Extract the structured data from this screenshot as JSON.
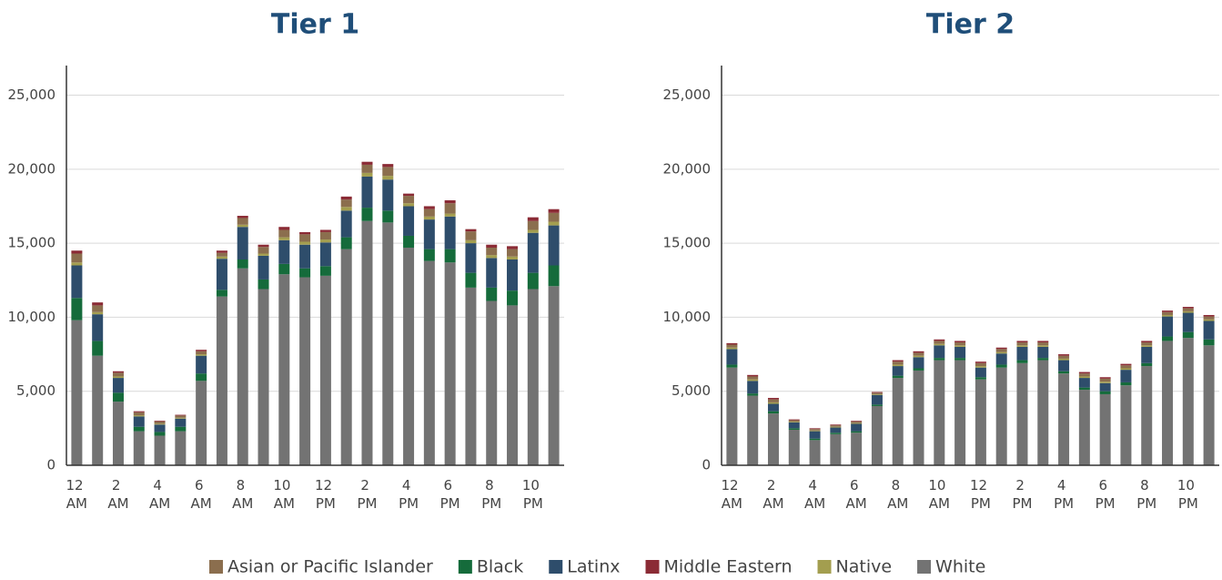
{
  "chart_data": [
    {
      "type": "bar",
      "stacked": true,
      "title": "Tier 1",
      "categories": [
        "12 AM",
        null,
        "2 AM",
        null,
        "4 AM",
        null,
        "6 AM",
        null,
        "8 AM",
        null,
        "10 AM",
        null,
        "12 PM",
        null,
        "2 PM",
        null,
        "4 PM",
        null,
        "6 PM",
        null,
        "8 PM",
        null,
        "10 PM",
        null
      ],
      "ylim": [
        0,
        27000
      ],
      "yticks": [
        0,
        {
          "value": 5000,
          "label": "5,000"
        },
        {
          "value": 10000,
          "label": "10,000"
        },
        {
          "value": 15000,
          "label": "15,000"
        },
        {
          "value": 20000,
          "label": "20,000"
        },
        {
          "value": 25000,
          "label": "25,000"
        }
      ],
      "grid": true,
      "series": [
        {
          "name": "White",
          "color": "#737373",
          "values": [
            9800,
            7400,
            4300,
            2300,
            2000,
            2300,
            5700,
            11400,
            13300,
            11900,
            12900,
            12700,
            12800,
            14600,
            16500,
            16400,
            14700,
            13800,
            13700,
            12000,
            11100,
            10800,
            11900,
            12100
          ]
        },
        {
          "name": "Black",
          "color": "#156b3b",
          "values": [
            1500,
            1000,
            600,
            300,
            250,
            300,
            500,
            450,
            600,
            650,
            700,
            600,
            650,
            800,
            900,
            800,
            800,
            800,
            900,
            1000,
            900,
            1000,
            1100,
            1400
          ]
        },
        {
          "name": "Latinx",
          "color": "#2e4d6b",
          "values": [
            2200,
            1800,
            1000,
            700,
            500,
            550,
            1200,
            2100,
            2200,
            1600,
            1600,
            1600,
            1600,
            1800,
            2100,
            2100,
            2000,
            2000,
            2200,
            2000,
            2000,
            2100,
            2700,
            2700
          ]
        },
        {
          "name": "Native",
          "color": "#a39e4f",
          "values": [
            200,
            150,
            100,
            80,
            60,
            60,
            100,
            150,
            150,
            150,
            200,
            200,
            200,
            250,
            250,
            250,
            200,
            200,
            200,
            200,
            200,
            200,
            200,
            250
          ]
        },
        {
          "name": "Asian or Pacific Islander",
          "color": "#8b6e4e",
          "values": [
            600,
            450,
            250,
            200,
            150,
            150,
            200,
            250,
            450,
            450,
            500,
            500,
            500,
            500,
            550,
            600,
            500,
            500,
            700,
            600,
            500,
            500,
            600,
            600
          ]
        },
        {
          "name": "Middle Eastern",
          "color": "#8b2b35",
          "values": [
            200,
            200,
            100,
            70,
            50,
            50,
            100,
            150,
            150,
            150,
            200,
            150,
            150,
            200,
            200,
            200,
            150,
            200,
            200,
            150,
            200,
            200,
            250,
            250
          ]
        }
      ]
    },
    {
      "type": "bar",
      "stacked": true,
      "title": "Tier 2",
      "categories": [
        "12 AM",
        null,
        "2 AM",
        null,
        "4 AM",
        null,
        "6 AM",
        null,
        "8 AM",
        null,
        "10 AM",
        null,
        "12 PM",
        null,
        "2 PM",
        null,
        "4 PM",
        null,
        "6 PM",
        null,
        "8 PM",
        null,
        "10 PM",
        null
      ],
      "ylim": [
        0,
        27000
      ],
      "yticks": [
        0,
        {
          "value": 5000,
          "label": "5,000"
        },
        {
          "value": 10000,
          "label": "10,000"
        },
        {
          "value": 15000,
          "label": "15,000"
        },
        {
          "value": 20000,
          "label": "20,000"
        },
        {
          "value": 25000,
          "label": "25,000"
        }
      ],
      "grid": true,
      "series": [
        {
          "name": "White",
          "color": "#737373",
          "values": [
            6600,
            4700,
            3500,
            2400,
            1700,
            2100,
            2200,
            4000,
            5900,
            6400,
            7100,
            7100,
            5800,
            6600,
            6900,
            7100,
            6200,
            5100,
            4800,
            5400,
            6700,
            8400,
            8600,
            8100
          ]
        },
        {
          "name": "Black",
          "color": "#156b3b",
          "values": [
            200,
            150,
            150,
            100,
            100,
            100,
            100,
            100,
            150,
            150,
            150,
            150,
            150,
            200,
            200,
            150,
            150,
            150,
            200,
            200,
            200,
            300,
            400,
            400
          ]
        },
        {
          "name": "Latinx",
          "color": "#2e4d6b",
          "values": [
            1050,
            850,
            500,
            400,
            500,
            350,
            500,
            650,
            650,
            750,
            850,
            750,
            650,
            750,
            900,
            750,
            750,
            650,
            550,
            850,
            1100,
            1350,
            1300,
            1250
          ]
        },
        {
          "name": "Native",
          "color": "#a39e4f",
          "values": [
            100,
            100,
            100,
            50,
            50,
            50,
            50,
            50,
            100,
            100,
            100,
            100,
            100,
            100,
            100,
            100,
            100,
            100,
            100,
            100,
            100,
            100,
            100,
            100
          ]
        },
        {
          "name": "Asian or Pacific Islander",
          "color": "#8b6e4e",
          "values": [
            200,
            200,
            200,
            100,
            100,
            100,
            100,
            100,
            200,
            200,
            200,
            200,
            200,
            200,
            200,
            200,
            200,
            200,
            200,
            200,
            200,
            200,
            200,
            200
          ]
        },
        {
          "name": "Middle Eastern",
          "color": "#8b2b35",
          "values": [
            100,
            100,
            100,
            50,
            50,
            50,
            50,
            50,
            100,
            100,
            100,
            100,
            100,
            100,
            100,
            100,
            100,
            100,
            100,
            100,
            100,
            100,
            100,
            100
          ]
        }
      ]
    }
  ]
}
